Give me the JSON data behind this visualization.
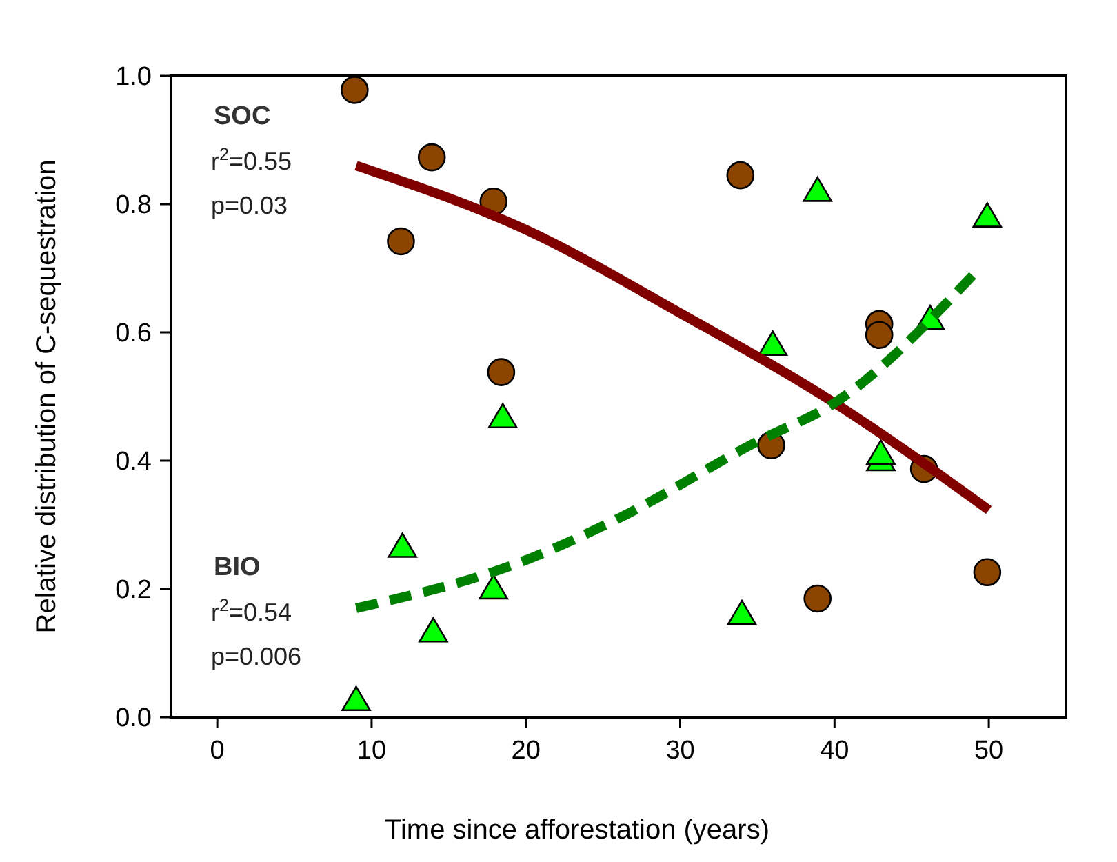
{
  "chart_data": {
    "type": "scatter",
    "xlabel": "Time since afforestation (years)",
    "ylabel": "Relative distribution of C-sequestration",
    "xlim": [
      -3,
      55
    ],
    "ylim": [
      0,
      1
    ],
    "xticks": [
      0,
      10,
      20,
      30,
      40,
      50
    ],
    "yticks": [
      {
        "value": 0,
        "label": "0.0"
      },
      {
        "value": 0.2,
        "label": "0.2"
      },
      {
        "value": 0.4,
        "label": "0.4"
      },
      {
        "value": 0.6,
        "label": "0.6"
      },
      {
        "value": 0.8,
        "label": "0.8"
      },
      {
        "value": 1,
        "label": "1.0"
      }
    ],
    "grid": false,
    "annotations": [
      "SOC",
      "r$^{2}$=0.55",
      "p=0.03",
      "BIO",
      "r$^{2}$=0.54",
      "p=0.006"
    ],
    "series": [
      {
        "marker": "circle",
        "color": "#8b4500",
        "x": [
          8.9,
          13.9,
          17.9,
          11.9,
          18.4,
          33.9,
          42.9,
          42.9,
          35.9,
          45.8,
          38.9,
          49.9
        ],
        "values": [
          0.978,
          0.873,
          0.804,
          0.742,
          0.538,
          0.845,
          0.613,
          0.596,
          0.424,
          0.387,
          0.185,
          0.226
        ]
      },
      {
        "marker": "triangle",
        "color": "#00ff00",
        "x": [
          9,
          12,
          14,
          17.9,
          18.5,
          38.9,
          49.9,
          36,
          46.2,
          34,
          43,
          43
        ],
        "values": [
          0.026,
          0.265,
          0.133,
          0.2,
          0.467,
          0.82,
          0.78,
          0.58,
          0.62,
          0.16,
          0.4,
          0.41
        ]
      },
      {
        "type": "line",
        "marker": "none",
        "line_style": "solid",
        "color": "#800000",
        "x": [
          9,
          20,
          30,
          40,
          50
        ],
        "values": [
          0.86,
          0.76,
          0.63,
          0.49,
          0.323
        ]
      },
      {
        "type": "line",
        "marker": "none",
        "line_style": "dashed",
        "color": "#008000",
        "x": [
          9,
          20,
          26,
          35,
          40,
          49
        ],
        "values": [
          0.17,
          0.245,
          0.31,
          0.43,
          0.49,
          0.69
        ]
      }
    ]
  }
}
